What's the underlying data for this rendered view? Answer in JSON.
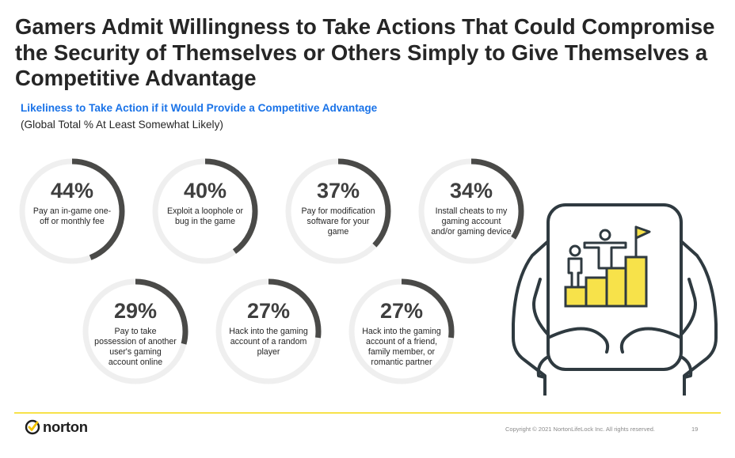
{
  "slide": {
    "title": "Gamers Admit Willingness to Take Actions That Could Compromise the Security of Themselves or Others Simply to Give Themselves a Competitive Advantage",
    "subtitle": "Likeliness to Take Action if it Would Provide a Competitive Advantage",
    "note": "(Global Total % At Least Somewhat Likely)",
    "logo_text": "norton",
    "copyright": "Copyright © 2021 NortonLifeLock Inc. All rights reserved.",
    "page_number": "19"
  },
  "colors": {
    "accent_blue": "#1a73e8",
    "ring_fill": "#4a4a48",
    "ring_track": "#efefef",
    "highlight_yellow": "#f7e24a",
    "illustration_stroke": "#2f3a40"
  },
  "chart_data": {
    "type": "donut",
    "title": "Likeliness to Take Action if it Would Provide a Competitive Advantage",
    "subtitle": "(Global Total % At Least Somewhat Likely)",
    "unit": "%",
    "categories": [
      "Pay an in-game one-off or monthly fee",
      "Exploit a loophole or bug in the game",
      "Pay for modification software for your game",
      "Install cheats to my gaming account and/or gaming device",
      "Pay to take possession of another user's gaming account online",
      "Hack into the gaming account of a random player",
      "Hack into the gaming account of a friend, family member, or romantic partner"
    ],
    "values": [
      44,
      40,
      37,
      34,
      29,
      27,
      27
    ],
    "value_labels": [
      "44%",
      "40%",
      "37%",
      "34%",
      "29%",
      "27%",
      "27%"
    ]
  }
}
